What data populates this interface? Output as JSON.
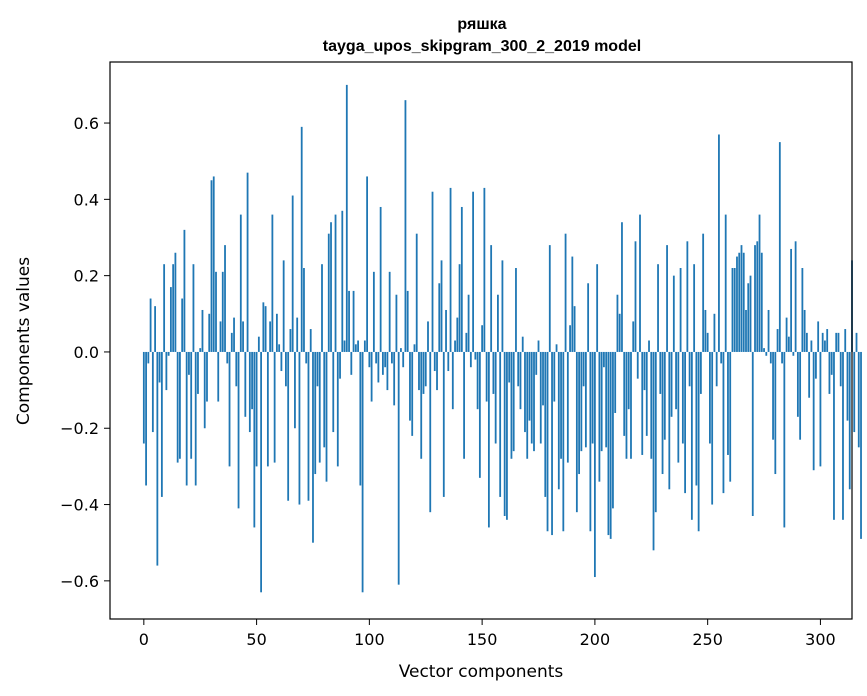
{
  "chart_data": {
    "type": "bar",
    "title": "ряшка",
    "subtitle": "tayga_upos_skipgram_300_2_2019 model",
    "xlabel": "Vector components",
    "ylabel": "Components values",
    "xlim": [
      -15,
      314
    ],
    "ylim": [
      -0.7,
      0.76
    ],
    "x_ticks": [
      0,
      50,
      100,
      150,
      200,
      250,
      300
    ],
    "x_tick_labels": [
      "0",
      "50",
      "100",
      "150",
      "200",
      "250",
      "300"
    ],
    "y_ticks": [
      -0.6,
      -0.4,
      -0.2,
      0.0,
      0.2,
      0.4,
      0.6
    ],
    "y_tick_labels": [
      "−0.6",
      "−0.4",
      "−0.2",
      "0.0",
      "0.2",
      "0.4",
      "0.6"
    ],
    "bar_color": "#1f77b4",
    "grid": false,
    "values": [
      -0.24,
      -0.35,
      -0.03,
      0.14,
      -0.21,
      0.12,
      -0.56,
      -0.08,
      -0.38,
      0.23,
      -0.1,
      -0.01,
      0.17,
      0.23,
      0.26,
      -0.29,
      -0.28,
      0.14,
      0.32,
      -0.35,
      -0.06,
      -0.28,
      0.23,
      -0.35,
      -0.11,
      0.01,
      0.11,
      -0.2,
      -0.13,
      0.1,
      0.45,
      0.46,
      0.21,
      -0.13,
      0.08,
      0.21,
      0.28,
      -0.03,
      -0.3,
      0.05,
      0.09,
      -0.09,
      -0.41,
      0.36,
      0.08,
      -0.17,
      0.47,
      -0.21,
      -0.15,
      -0.46,
      -0.3,
      0.04,
      -0.63,
      0.13,
      0.12,
      -0.3,
      0.08,
      0.36,
      -0.29,
      0.1,
      0.02,
      -0.05,
      0.24,
      -0.09,
      -0.39,
      0.06,
      0.41,
      -0.2,
      0.09,
      -0.4,
      0.59,
      0.22,
      -0.03,
      -0.39,
      0.06,
      -0.5,
      -0.32,
      -0.09,
      -0.29,
      0.23,
      -0.25,
      -0.34,
      0.31,
      0.34,
      -0.21,
      0.36,
      -0.3,
      -0.07,
      0.37,
      0.03,
      0.7,
      0.16,
      -0.06,
      0.16,
      0.02,
      0.03,
      -0.35,
      -0.63,
      0.03,
      0.46,
      -0.04,
      -0.13,
      0.21,
      -0.03,
      -0.08,
      0.38,
      -0.06,
      -0.04,
      -0.1,
      0.21,
      -0.03,
      -0.14,
      0.15,
      -0.61,
      0.01,
      -0.04,
      0.66,
      0.16,
      -0.18,
      -0.22,
      0.02,
      0.31,
      -0.1,
      -0.28,
      -0.11,
      -0.09,
      0.08,
      -0.42,
      0.42,
      -0.05,
      -0.1,
      0.18,
      0.24,
      -0.38,
      0.11,
      -0.05,
      0.43,
      -0.15,
      0.03,
      0.09,
      0.23,
      0.38,
      -0.28,
      0.05,
      0.15,
      -0.04,
      0.42,
      -0.02,
      -0.15,
      -0.33,
      0.07,
      0.43,
      -0.13,
      -0.46,
      0.28,
      -0.11,
      -0.24,
      0.15,
      -0.38,
      0.24,
      -0.43,
      -0.44,
      -0.08,
      -0.28,
      -0.26,
      0.22,
      -0.09,
      -0.15,
      0.04,
      -0.21,
      -0.28,
      -0.18,
      -0.24,
      -0.26,
      -0.06,
      0.03,
      -0.24,
      -0.14,
      -0.38,
      -0.47,
      0.28,
      -0.48,
      -0.13,
      0.02,
      -0.36,
      -0.28,
      -0.47,
      0.31,
      -0.29,
      0.07,
      0.25,
      0.12,
      -0.42,
      -0.32,
      -0.26,
      -0.09,
      -0.25,
      0.18,
      -0.47,
      -0.24,
      -0.59,
      0.23,
      -0.34,
      -0.26,
      -0.04,
      -0.25,
      -0.48,
      -0.49,
      -0.41,
      -0.16,
      0.15,
      0.1,
      0.34,
      -0.22,
      -0.28,
      -0.15,
      -0.28,
      0.08,
      0.29,
      -0.07,
      0.36,
      -0.27,
      -0.1,
      -0.22,
      0.03,
      -0.28,
      -0.52,
      -0.42,
      0.23,
      -0.11,
      -0.32,
      -0.23,
      0.28,
      -0.36,
      -0.17,
      0.2,
      -0.15,
      -0.29,
      0.22,
      -0.24,
      -0.37,
      0.29,
      -0.09,
      -0.44,
      0.23,
      -0.35,
      -0.47,
      -0.11,
      0.31,
      0.11,
      0.05,
      -0.24,
      -0.4,
      0.1,
      -0.09,
      0.57,
      -0.03,
      -0.37,
      0.36,
      -0.27,
      -0.34,
      0.22,
      0.22,
      0.25,
      0.26,
      0.28,
      0.26,
      0.11,
      0.18,
      0.2,
      -0.43,
      0.28,
      0.29,
      0.36,
      0.26,
      0.01,
      -0.01,
      0.11,
      -0.03,
      -0.23,
      -0.32,
      0.06,
      0.55,
      -0.03,
      -0.46,
      0.09,
      0.04,
      0.27,
      -0.01,
      0.29,
      -0.17,
      -0.23,
      0.22,
      0.11,
      0.05,
      -0.12,
      0.03,
      -0.31,
      -0.07,
      0.08,
      -0.3,
      0.05,
      0.03,
      0.06,
      -0.11,
      -0.06,
      -0.44,
      0.05,
      0.05,
      -0.09,
      -0.44,
      0.06,
      -0.18,
      -0.36,
      0.24,
      -0.21,
      0.05,
      -0.25,
      -0.49
    ]
  }
}
